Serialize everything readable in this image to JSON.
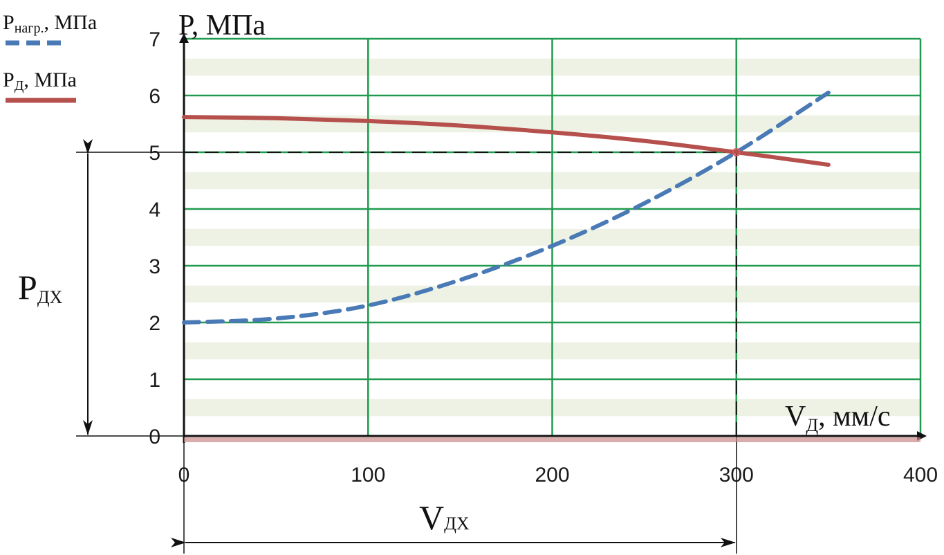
{
  "chart_data": {
    "type": "line",
    "ylabel": "P, МПа",
    "xlabel": {
      "main": "V",
      "sub": "Д",
      "rest": ", мм/с"
    },
    "xlim": [
      0,
      400
    ],
    "ylim": [
      0,
      7
    ],
    "x_ticks": [
      "0",
      "100",
      "200",
      "300",
      "400"
    ],
    "y_ticks": [
      "0",
      "1",
      "2",
      "3",
      "4",
      "5",
      "6",
      "7"
    ],
    "grid": true,
    "legend_placement": "top-left",
    "series": [
      {
        "name": {
          "main": "P",
          "sub": "нагр.",
          "rest": ", МПа"
        },
        "style": "dashed",
        "color": "#4a7ab5",
        "x": [
          0,
          50,
          100,
          150,
          200,
          250,
          300,
          350
        ],
        "y": [
          2.0,
          2.07,
          2.3,
          2.75,
          3.35,
          4.1,
          5.0,
          6.05
        ]
      },
      {
        "name": {
          "main": "P",
          "sub": "Д",
          "rest": ", МПа"
        },
        "style": "solid",
        "color": "#b5504c",
        "x": [
          0,
          50,
          100,
          150,
          200,
          250,
          300,
          350
        ],
        "y": [
          5.62,
          5.6,
          5.55,
          5.47,
          5.35,
          5.2,
          5.0,
          4.78
        ]
      }
    ],
    "intersection": {
      "x": 300,
      "y": 5.0
    },
    "annotations": {
      "pdx": {
        "main": "P",
        "sub": "ДХ"
      },
      "vdx": {
        "main": "V",
        "sub": "ДХ"
      }
    },
    "colors": {
      "grid": "#1f9a4e",
      "axis": "#111111",
      "band": "#eef2e4"
    }
  }
}
